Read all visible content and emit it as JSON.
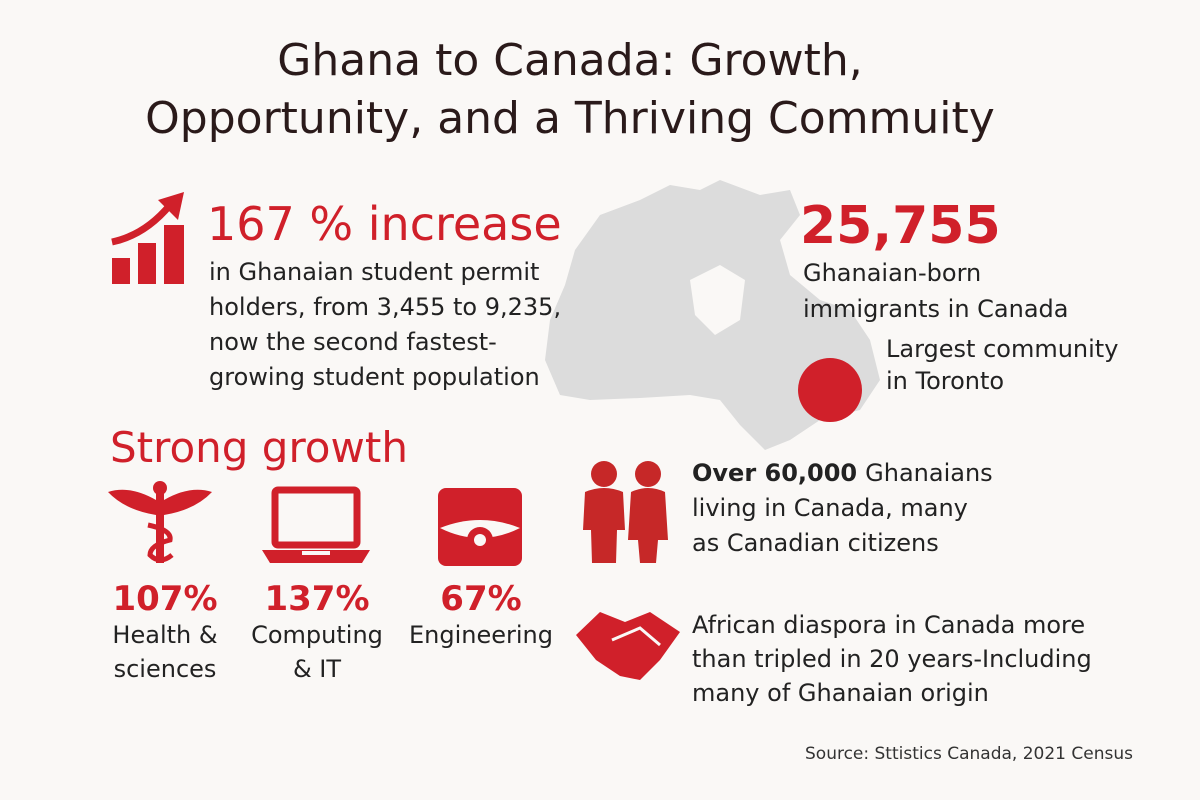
{
  "header": {
    "title_lines": [
      "Ghana to Canada: Growth,",
      "Opportunity, and a Thriving Commuity"
    ]
  },
  "student_permits": {
    "headline": "167 % increase",
    "description_lines": [
      "in Ghanaian student permit",
      "holders, from 3,455 to 9,235,",
      "now the second fastest-",
      "growing student population"
    ]
  },
  "immigrants": {
    "number": "25,755",
    "description_lines": [
      "Ghanaian-born",
      "immigrants in Canada"
    ],
    "toronto_lines": [
      "Largest community",
      "in Toronto"
    ]
  },
  "strong_growth": {
    "title": "Strong growth",
    "fields": [
      {
        "percent": "107%",
        "label_lines": [
          "Health &",
          "sciences"
        ]
      },
      {
        "percent": "137%",
        "label_lines": [
          "Computing",
          "& IT"
        ]
      },
      {
        "percent": "67%",
        "label_lines": [
          "Engineering"
        ]
      }
    ]
  },
  "population": {
    "highlight": "Over 60,000",
    "first_line_rest": "Ghanaians",
    "lines": [
      "living in Canada, many",
      "as Canadian citizens"
    ]
  },
  "diaspora": {
    "lines": [
      "African diaspora in Canada more",
      "than tripled in 20 years-Including",
      "many of Ghanaian origin"
    ]
  },
  "source": "Source: Sttistics Canada, 2021 Census"
}
